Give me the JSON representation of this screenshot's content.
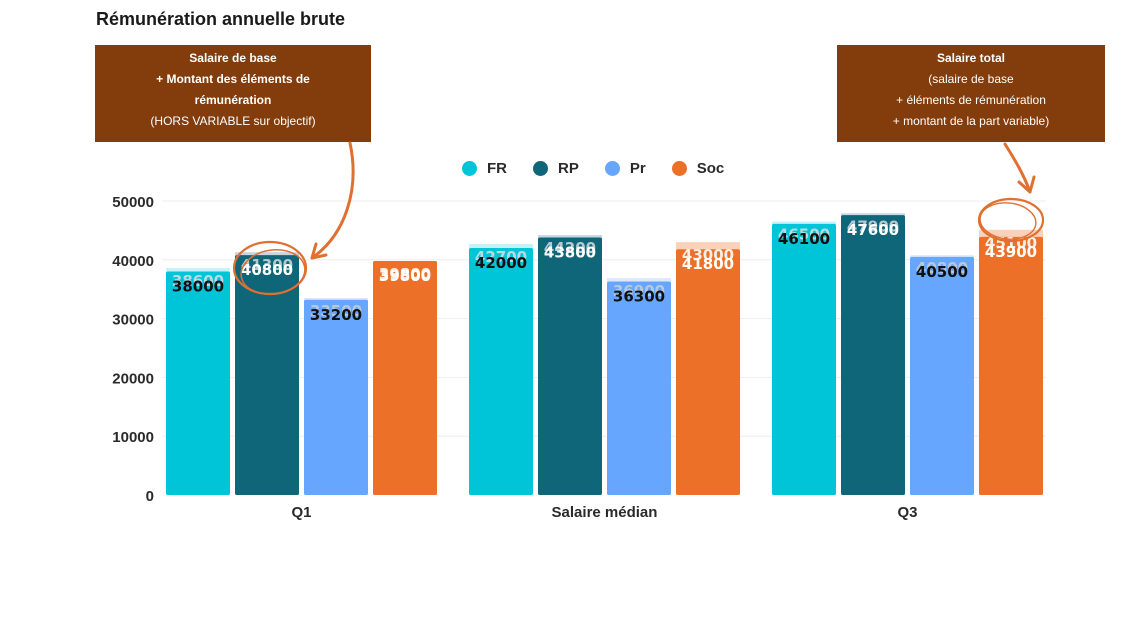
{
  "page": {
    "title": "Rémunération annuelle brute"
  },
  "callouts": {
    "left": [
      "Salaire de base",
      "+ Montant des éléments de",
      "rémunération",
      "(HORS VARIABLE sur objectif)"
    ],
    "right": [
      "Salaire total",
      "(salaire de base",
      "+ éléments de rémunération",
      "+ montant de la part variable)"
    ]
  },
  "colors": {
    "FR": "#00c4d8",
    "RP": "#0f6678",
    "Pr": "#66a6ff",
    "Soc": "#ec7028",
    "callout_bg": "#833c0c",
    "annotation": "#e07030"
  },
  "chart_data": {
    "type": "bar",
    "categories": [
      "Q1",
      "Salaire médian",
      "Q3"
    ],
    "ylim": [
      0,
      50000
    ],
    "yticks": [
      "0",
      "10000",
      "20000",
      "30000",
      "40000",
      "50000"
    ],
    "legend_position": "top-center",
    "series": [
      {
        "name": "FR",
        "values": [
          38000,
          42000,
          46100
        ],
        "total_values": [
          38600,
          42700,
          46500
        ]
      },
      {
        "name": "RP",
        "values": [
          40800,
          43800,
          47600
        ],
        "total_values": [
          41300,
          44200,
          47900
        ]
      },
      {
        "name": "Pr",
        "values": [
          33200,
          36300,
          40500
        ],
        "total_values": [
          33500,
          36900,
          40800
        ]
      },
      {
        "name": "Soc",
        "values": [
          39800,
          41800,
          43900
        ],
        "total_values": [
          39800,
          43000,
          45100
        ]
      }
    ]
  }
}
